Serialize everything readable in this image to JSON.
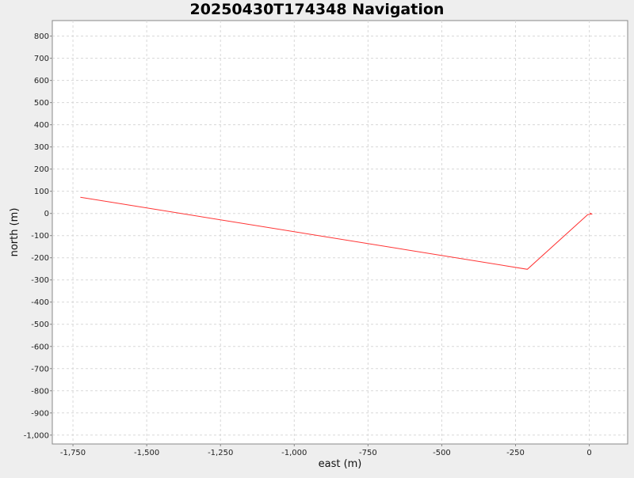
{
  "chart_data": {
    "type": "line",
    "title": "20250430T174348 Navigation",
    "xlabel": "east (m)",
    "ylabel": "north (m)",
    "xlim": [
      -1820,
      130
    ],
    "ylim": [
      -1040,
      870
    ],
    "x_ticks": [
      {
        "value": -1750,
        "label": "-1,750"
      },
      {
        "value": -1500,
        "label": "-1,500"
      },
      {
        "value": -1250,
        "label": "-1,250"
      },
      {
        "value": -1000,
        "label": "-1,000"
      },
      {
        "value": -750,
        "label": "-750"
      },
      {
        "value": -500,
        "label": "-500"
      },
      {
        "value": -250,
        "label": "-250"
      },
      {
        "value": 0,
        "label": "0"
      }
    ],
    "y_ticks": [
      {
        "value": 800,
        "label": "800"
      },
      {
        "value": 700,
        "label": "700"
      },
      {
        "value": 600,
        "label": "600"
      },
      {
        "value": 500,
        "label": "500"
      },
      {
        "value": 400,
        "label": "400"
      },
      {
        "value": 300,
        "label": "300"
      },
      {
        "value": 200,
        "label": "200"
      },
      {
        "value": 100,
        "label": "100"
      },
      {
        "value": 0,
        "label": "0"
      },
      {
        "value": -100,
        "label": "-100"
      },
      {
        "value": -200,
        "label": "-200"
      },
      {
        "value": -300,
        "label": "-300"
      },
      {
        "value": -400,
        "label": "-400"
      },
      {
        "value": -500,
        "label": "-500"
      },
      {
        "value": -600,
        "label": "-600"
      },
      {
        "value": -700,
        "label": "-700"
      },
      {
        "value": -800,
        "label": "-800"
      },
      {
        "value": -900,
        "label": "-900"
      },
      {
        "value": -1000,
        "label": "-1,000"
      }
    ],
    "grid": true,
    "series": [
      {
        "color": "#ff3333",
        "x": [
          2,
          8,
          3,
          -5,
          -210,
          -1725
        ],
        "y": [
          2,
          -3,
          -4,
          -5,
          -252,
          73
        ]
      }
    ],
    "colors": {
      "background": "#eeeeee",
      "plot_background": "#ffffff",
      "grid": "#d8d8d8",
      "axis": "#888888"
    }
  }
}
